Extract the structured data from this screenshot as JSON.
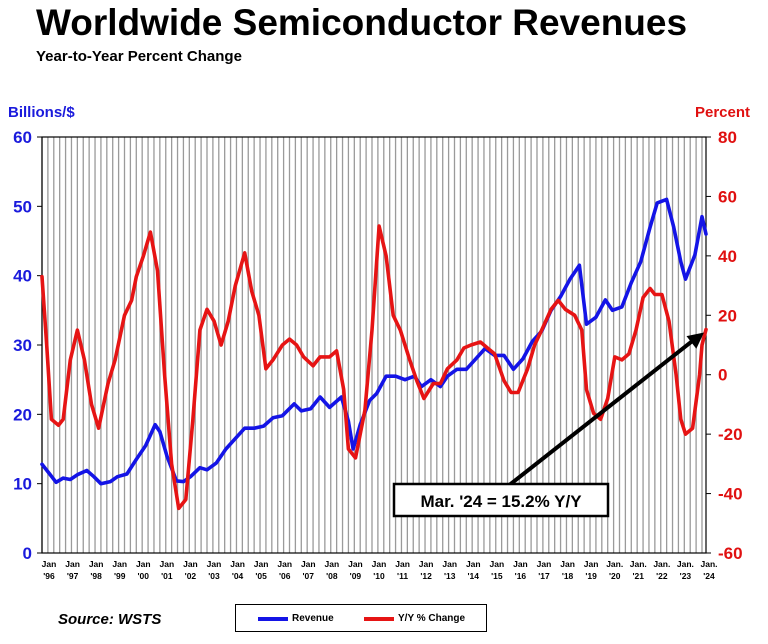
{
  "title": "Worldwide Semiconductor Revenues",
  "subtitle": "Year-to-Year Percent Change",
  "source": "Source: WSTS",
  "legend": {
    "revenue": "Revenue",
    "yoy": "Y/Y % Change"
  },
  "annotation": "Mar. '24 = 15.2% Y/Y",
  "chart_data": {
    "type": "line",
    "title": "Worldwide Semiconductor Revenues",
    "subtitle": "Year-to-Year Percent Change",
    "ylabel_left": "Billions/$",
    "ylabel_right": "Percent",
    "ylim_left": [
      0,
      60
    ],
    "ylim_right": [
      -60,
      80
    ],
    "yticks_left": [
      "0",
      "10",
      "20",
      "30",
      "40",
      "50",
      "60"
    ],
    "yticks_right": [
      "-60",
      "-40",
      "-20",
      "0",
      "20",
      "40",
      "60",
      "80"
    ],
    "xlim": [
      1996.0,
      2024.17
    ],
    "xticks": [
      {
        "x": 1996,
        "l1": "Jan",
        "l2": "'96"
      },
      {
        "x": 1997,
        "l1": "Jan",
        "l2": "'97"
      },
      {
        "x": 1998,
        "l1": "Jan",
        "l2": "'98"
      },
      {
        "x": 1999,
        "l1": "Jan",
        "l2": "'99"
      },
      {
        "x": 2000,
        "l1": "Jan",
        "l2": "'00"
      },
      {
        "x": 2001,
        "l1": "Jan",
        "l2": "'01"
      },
      {
        "x": 2002,
        "l1": "Jan",
        "l2": "'02"
      },
      {
        "x": 2003,
        "l1": "Jan",
        "l2": "'03"
      },
      {
        "x": 2004,
        "l1": "Jan",
        "l2": "'04"
      },
      {
        "x": 2005,
        "l1": "Jan",
        "l2": "'05"
      },
      {
        "x": 2006,
        "l1": "Jan",
        "l2": "'06"
      },
      {
        "x": 2007,
        "l1": "Jan",
        "l2": "'07"
      },
      {
        "x": 2008,
        "l1": "Jan",
        "l2": "'08"
      },
      {
        "x": 2009,
        "l1": "Jan",
        "l2": "'09"
      },
      {
        "x": 2010,
        "l1": "Jan",
        "l2": "'10"
      },
      {
        "x": 2011,
        "l1": "Jan",
        "l2": "'11"
      },
      {
        "x": 2012,
        "l1": "Jan",
        "l2": "'12"
      },
      {
        "x": 2013,
        "l1": "Jan",
        "l2": "'13"
      },
      {
        "x": 2014,
        "l1": "Jan",
        "l2": "'14"
      },
      {
        "x": 2015,
        "l1": "Jan",
        "l2": "'15"
      },
      {
        "x": 2016,
        "l1": "Jan",
        "l2": "'16"
      },
      {
        "x": 2017,
        "l1": "Jan",
        "l2": "'17"
      },
      {
        "x": 2018,
        "l1": "Jan",
        "l2": "'18"
      },
      {
        "x": 2019,
        "l1": "Jan",
        "l2": "'19"
      },
      {
        "x": 2020,
        "l1": "Jan.",
        "l2": "'20"
      },
      {
        "x": 2021,
        "l1": "Jan.",
        "l2": "'21"
      },
      {
        "x": 2022,
        "l1": "Jan.",
        "l2": "'22"
      },
      {
        "x": 2023,
        "l1": "Jan.",
        "l2": "'23"
      },
      {
        "x": 2024,
        "l1": "Jan.",
        "l2": "'24"
      }
    ],
    "grid": "vertical",
    "legend_position": "bottom-center",
    "series": [
      {
        "name": "Revenue",
        "axis": "left",
        "color": "#1414e6",
        "points": [
          [
            1996.0,
            12.8
          ],
          [
            1996.3,
            11.5
          ],
          [
            1996.6,
            10.2
          ],
          [
            1996.9,
            10.8
          ],
          [
            1997.2,
            10.6
          ],
          [
            1997.5,
            11.3
          ],
          [
            1997.9,
            11.9
          ],
          [
            1998.2,
            11.0
          ],
          [
            1998.5,
            10.0
          ],
          [
            1998.9,
            10.3
          ],
          [
            1999.2,
            11.0
          ],
          [
            1999.6,
            11.4
          ],
          [
            2000.0,
            13.5
          ],
          [
            2000.4,
            15.5
          ],
          [
            2000.8,
            18.5
          ],
          [
            2001.0,
            17.5
          ],
          [
            2001.3,
            14.0
          ],
          [
            2001.7,
            10.4
          ],
          [
            2002.0,
            10.3
          ],
          [
            2002.3,
            11.0
          ],
          [
            2002.7,
            12.3
          ],
          [
            2003.0,
            12.0
          ],
          [
            2003.4,
            13.0
          ],
          [
            2003.8,
            15.0
          ],
          [
            2004.2,
            16.5
          ],
          [
            2004.6,
            18.0
          ],
          [
            2005.0,
            18.0
          ],
          [
            2005.4,
            18.3
          ],
          [
            2005.8,
            19.5
          ],
          [
            2006.2,
            19.8
          ],
          [
            2006.7,
            21.5
          ],
          [
            2007.0,
            20.5
          ],
          [
            2007.4,
            20.8
          ],
          [
            2007.8,
            22.5
          ],
          [
            2008.2,
            21.0
          ],
          [
            2008.7,
            22.5
          ],
          [
            2009.0,
            19.0
          ],
          [
            2009.2,
            15.0
          ],
          [
            2009.5,
            18.5
          ],
          [
            2009.9,
            22.0
          ],
          [
            2010.2,
            23.0
          ],
          [
            2010.6,
            25.5
          ],
          [
            2011.0,
            25.5
          ],
          [
            2011.4,
            25.0
          ],
          [
            2011.8,
            25.5
          ],
          [
            2012.1,
            24.0
          ],
          [
            2012.5,
            25.0
          ],
          [
            2012.9,
            24.0
          ],
          [
            2013.2,
            25.5
          ],
          [
            2013.6,
            26.5
          ],
          [
            2014.0,
            26.5
          ],
          [
            2014.4,
            28.0
          ],
          [
            2014.8,
            29.5
          ],
          [
            2015.2,
            28.5
          ],
          [
            2015.6,
            28.5
          ],
          [
            2016.0,
            26.5
          ],
          [
            2016.4,
            28.0
          ],
          [
            2016.8,
            30.5
          ],
          [
            2017.2,
            32.0
          ],
          [
            2017.6,
            35.0
          ],
          [
            2018.0,
            37.0
          ],
          [
            2018.4,
            39.5
          ],
          [
            2018.8,
            41.5
          ],
          [
            2019.1,
            33.0
          ],
          [
            2019.5,
            34.0
          ],
          [
            2019.9,
            36.5
          ],
          [
            2020.2,
            35.0
          ],
          [
            2020.6,
            35.5
          ],
          [
            2021.0,
            39.0
          ],
          [
            2021.4,
            42.0
          ],
          [
            2021.8,
            47.0
          ],
          [
            2022.1,
            50.5
          ],
          [
            2022.5,
            51.0
          ],
          [
            2022.8,
            47.0
          ],
          [
            2023.1,
            42.0
          ],
          [
            2023.3,
            39.5
          ],
          [
            2023.7,
            43.0
          ],
          [
            2024.0,
            48.5
          ],
          [
            2024.17,
            46.0
          ]
        ]
      },
      {
        "name": "Y/Y % Change",
        "axis": "right",
        "color": "#e61414",
        "points": [
          [
            1996.0,
            33
          ],
          [
            1996.2,
            10
          ],
          [
            1996.4,
            -15
          ],
          [
            1996.7,
            -17
          ],
          [
            1996.9,
            -15
          ],
          [
            1997.2,
            5
          ],
          [
            1997.5,
            15
          ],
          [
            1997.8,
            5
          ],
          [
            1998.1,
            -10
          ],
          [
            1998.4,
            -18
          ],
          [
            1998.8,
            -3
          ],
          [
            1999.1,
            5
          ],
          [
            1999.5,
            20
          ],
          [
            1999.8,
            25
          ],
          [
            2000.0,
            33
          ],
          [
            2000.3,
            40
          ],
          [
            2000.6,
            48
          ],
          [
            2000.9,
            35
          ],
          [
            2001.2,
            0
          ],
          [
            2001.5,
            -30
          ],
          [
            2001.8,
            -45
          ],
          [
            2002.1,
            -42
          ],
          [
            2002.4,
            -15
          ],
          [
            2002.7,
            15
          ],
          [
            2003.0,
            22
          ],
          [
            2003.3,
            18
          ],
          [
            2003.6,
            10
          ],
          [
            2003.9,
            18
          ],
          [
            2004.2,
            30
          ],
          [
            2004.6,
            41
          ],
          [
            2004.9,
            28
          ],
          [
            2005.2,
            20
          ],
          [
            2005.5,
            2
          ],
          [
            2005.8,
            5
          ],
          [
            2006.2,
            10
          ],
          [
            2006.5,
            12
          ],
          [
            2006.8,
            10
          ],
          [
            2007.1,
            6
          ],
          [
            2007.5,
            3
          ],
          [
            2007.8,
            6
          ],
          [
            2008.2,
            6
          ],
          [
            2008.5,
            8
          ],
          [
            2008.8,
            -5
          ],
          [
            2009.0,
            -25
          ],
          [
            2009.3,
            -28
          ],
          [
            2009.7,
            -12
          ],
          [
            2010.0,
            15
          ],
          [
            2010.3,
            50
          ],
          [
            2010.6,
            40
          ],
          [
            2010.9,
            20
          ],
          [
            2011.2,
            15
          ],
          [
            2011.6,
            5
          ],
          [
            2011.9,
            -2
          ],
          [
            2012.2,
            -8
          ],
          [
            2012.6,
            -3
          ],
          [
            2012.9,
            -3
          ],
          [
            2013.2,
            2
          ],
          [
            2013.6,
            5
          ],
          [
            2013.9,
            9
          ],
          [
            2014.2,
            10
          ],
          [
            2014.6,
            11
          ],
          [
            2014.9,
            9
          ],
          [
            2015.2,
            7
          ],
          [
            2015.6,
            -2
          ],
          [
            2015.9,
            -6
          ],
          [
            2016.2,
            -6
          ],
          [
            2016.6,
            2
          ],
          [
            2016.9,
            10
          ],
          [
            2017.2,
            15
          ],
          [
            2017.6,
            22
          ],
          [
            2017.9,
            25
          ],
          [
            2018.2,
            22
          ],
          [
            2018.6,
            20
          ],
          [
            2018.9,
            15
          ],
          [
            2019.1,
            -5
          ],
          [
            2019.4,
            -13
          ],
          [
            2019.7,
            -15
          ],
          [
            2020.0,
            -8
          ],
          [
            2020.3,
            6
          ],
          [
            2020.6,
            5
          ],
          [
            2020.9,
            7
          ],
          [
            2021.2,
            15
          ],
          [
            2021.5,
            26
          ],
          [
            2021.8,
            29
          ],
          [
            2022.0,
            27
          ],
          [
            2022.3,
            27
          ],
          [
            2022.6,
            18
          ],
          [
            2022.9,
            0
          ],
          [
            2023.1,
            -15
          ],
          [
            2023.3,
            -20
          ],
          [
            2023.6,
            -18
          ],
          [
            2023.9,
            0
          ],
          [
            2024.0,
            10
          ],
          [
            2024.17,
            15.2
          ]
        ]
      }
    ]
  }
}
